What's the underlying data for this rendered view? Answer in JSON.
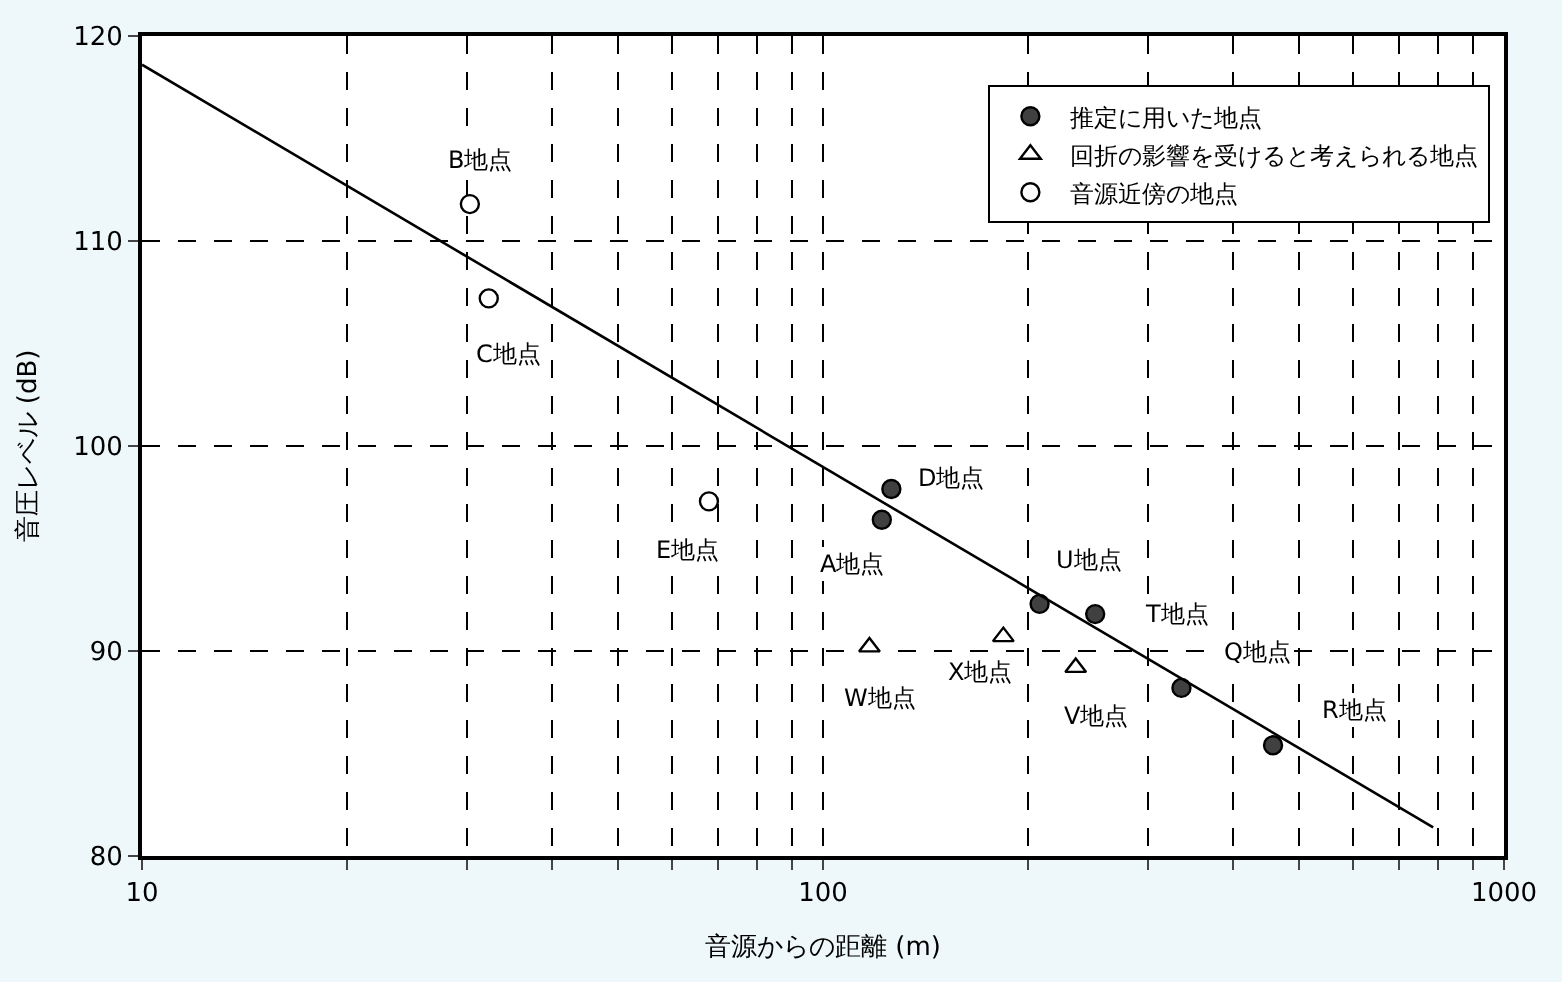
{
  "chart_data": {
    "type": "scatter",
    "xlabel": "音源からの距離 (m)",
    "ylabel": "音圧レベル (dB)",
    "log": "x",
    "xlim": [
      10,
      1000
    ],
    "ylim": [
      80,
      120
    ],
    "xticks": [
      10,
      {
        "value": 20,
        "label": null
      },
      {
        "value": 30,
        "label": null
      },
      {
        "value": 40,
        "label": null
      },
      {
        "value": 50,
        "label": null
      },
      {
        "value": 60,
        "label": null
      },
      {
        "value": 70,
        "label": null
      },
      {
        "value": 80,
        "label": null
      },
      {
        "value": 90,
        "label": null
      },
      100,
      {
        "value": 200,
        "label": null
      },
      {
        "value": 300,
        "label": null
      },
      {
        "value": 400,
        "label": null
      },
      {
        "value": 500,
        "label": null
      },
      {
        "value": 600,
        "label": null
      },
      {
        "value": 700,
        "label": null
      },
      {
        "value": 800,
        "label": null
      },
      {
        "value": 900,
        "label": null
      },
      1000
    ],
    "yticks": [
      80,
      90,
      100,
      110,
      120
    ],
    "grid": true,
    "legend": "top right",
    "series": [
      {
        "name": "推定に用いた地点",
        "color": "#404040",
        "marker": "circle",
        "x": [
          122,
          126,
          208,
          251,
          336,
          458
        ],
        "values": [
          96.4,
          97.9,
          92.3,
          91.8,
          88.2,
          85.4
        ]
      },
      {
        "name": "回折の影響を受けると考えられる地点",
        "color": "#ffffff",
        "marker": "triangle",
        "x": [
          117,
          184,
          235
        ],
        "values": [
          90.2,
          90.7,
          89.2
        ]
      },
      {
        "name": "音源近傍の地点",
        "color": "#ffffff",
        "marker": "circle",
        "x": [
          30.3,
          32.3,
          68
        ],
        "values": [
          111.8,
          107.2,
          97.3
        ]
      },
      {
        "type": "line",
        "color": "#000000",
        "marker": "none",
        "line_style": "solid",
        "x": [
          10,
          787
        ],
        "values": [
          118.6,
          81.4
        ]
      }
    ],
    "annotations": [
      {
        "text": "A地点",
        "x": 122,
        "y": 96.4
      },
      {
        "text": "D地点",
        "x": 126,
        "y": 97.9
      },
      {
        "text": "U地点",
        "x": 208,
        "y": 92.3
      },
      {
        "text": "T地点",
        "x": 251,
        "y": 91.8
      },
      {
        "text": "Q地点",
        "x": 336,
        "y": 88.2
      },
      {
        "text": "R地点",
        "x": 458,
        "y": 85.4
      },
      {
        "text": "W地点",
        "x": 117,
        "y": 90.2
      },
      {
        "text": "X地点",
        "x": 184,
        "y": 90.7
      },
      {
        "text": "V地点",
        "x": 235,
        "y": 89.2
      },
      {
        "text": "B地点",
        "x": 30.3,
        "y": 111.8
      },
      {
        "text": "C地点",
        "x": 32.3,
        "y": 107.2
      },
      {
        "text": "E地点",
        "x": 68,
        "y": 97.3
      }
    ]
  }
}
